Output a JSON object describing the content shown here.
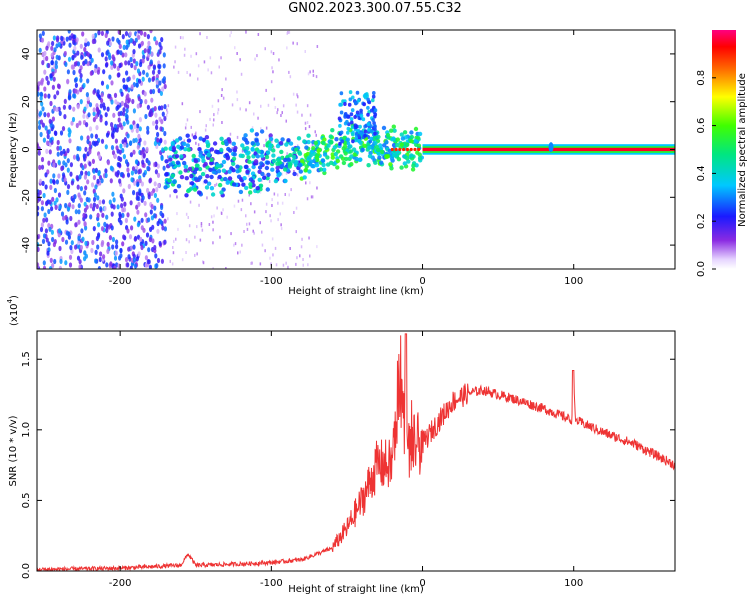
{
  "title": "GN02.2023.300.07.55.C32",
  "chart_data": [
    {
      "type": "heatmap",
      "xlabel": "Height of straight line (km)",
      "ylabel": "Frequency (Hz)",
      "xlim": [
        -255,
        167
      ],
      "ylim": [
        -50,
        50
      ],
      "x_ticks": [
        -200,
        -100,
        0,
        100
      ],
      "x_tick_labels": [
        "-200",
        "-100",
        "0",
        "100"
      ],
      "y_ticks": [
        -40,
        -20,
        0,
        20,
        40
      ],
      "y_tick_labels": [
        "-40",
        "-20",
        "0",
        "20",
        "40"
      ],
      "colorbar": {
        "label": "Normalized spectral amplitude",
        "range": [
          0,
          1
        ],
        "ticks": [
          0.0,
          0.2,
          0.4,
          0.6,
          0.8
        ],
        "tick_labels": [
          "0.0",
          "0.2",
          "0.4",
          "0.6",
          "0.8"
        ]
      },
      "features": [
        {
          "name": "noise",
          "x_range": [
            -255,
            -170
          ],
          "amplitude": 0.15
        },
        {
          "name": "ramp",
          "points": [
            [
              -170,
              -7
            ],
            [
              -120,
              -6
            ],
            [
              -80,
              -3
            ],
            [
              -40,
              2
            ],
            [
              -20,
              1
            ],
            [
              0,
              0
            ]
          ]
        },
        {
          "name": "carrier",
          "x_range": [
            0,
            167
          ],
          "freq": 0,
          "amplitude": 0.95
        },
        {
          "name": "spike",
          "x": 85,
          "freq": 1
        }
      ]
    },
    {
      "type": "line",
      "xlabel": "Height of straight line (km)",
      "ylabel": "SNR (10 * v/v)",
      "y_scale_label": "(x10",
      "y_scale_exp": "4",
      "xlim": [
        -255,
        167
      ],
      "ylim": [
        0,
        1.7
      ],
      "x_ticks": [
        -200,
        -100,
        0,
        100
      ],
      "x_tick_labels": [
        "-200",
        "-100",
        "0",
        "100"
      ],
      "y_ticks": [
        0.0,
        0.5,
        1.0,
        1.5
      ],
      "y_tick_labels": [
        "0.0",
        "0.5",
        "1.0",
        "1.5"
      ],
      "color": "#ee3333",
      "series": [
        {
          "name": "SNR",
          "x": [
            -255,
            -200,
            -160,
            -155,
            -150,
            -120,
            -100,
            -80,
            -60,
            -50,
            -40,
            -30,
            -20,
            -15,
            -10,
            -5,
            0,
            10,
            20,
            30,
            40,
            60,
            80,
            99,
            100,
            101,
            120,
            140,
            167
          ],
          "y": [
            0.01,
            0.02,
            0.04,
            0.12,
            0.04,
            0.05,
            0.06,
            0.08,
            0.16,
            0.3,
            0.5,
            0.75,
            0.75,
            1.4,
            0.85,
            0.9,
            0.9,
            1.05,
            1.2,
            1.26,
            1.28,
            1.22,
            1.15,
            1.07,
            1.35,
            1.07,
            0.98,
            0.9,
            0.75
          ]
        }
      ]
    }
  ]
}
